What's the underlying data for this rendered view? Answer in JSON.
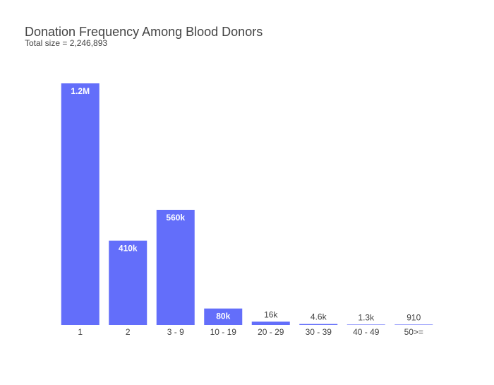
{
  "chart_data": {
    "type": "bar",
    "title": "Donation Frequency Among Blood Donors",
    "subtitle": "Total size = 2,246,893",
    "categories": [
      "1",
      "2",
      "3 - 9",
      "10 - 19",
      "20 - 29",
      "30 - 39",
      "40 - 49",
      "50>="
    ],
    "values": [
      1175000,
      410000,
      560000,
      80000,
      16000,
      4600,
      1300,
      910
    ],
    "data_labels": [
      "1.2M",
      "410k",
      "560k",
      "80k",
      "16k",
      "4.6k",
      "1.3k",
      "910"
    ],
    "ylim": [
      0,
      1236842
    ],
    "grid": false,
    "color": "#636efa"
  }
}
